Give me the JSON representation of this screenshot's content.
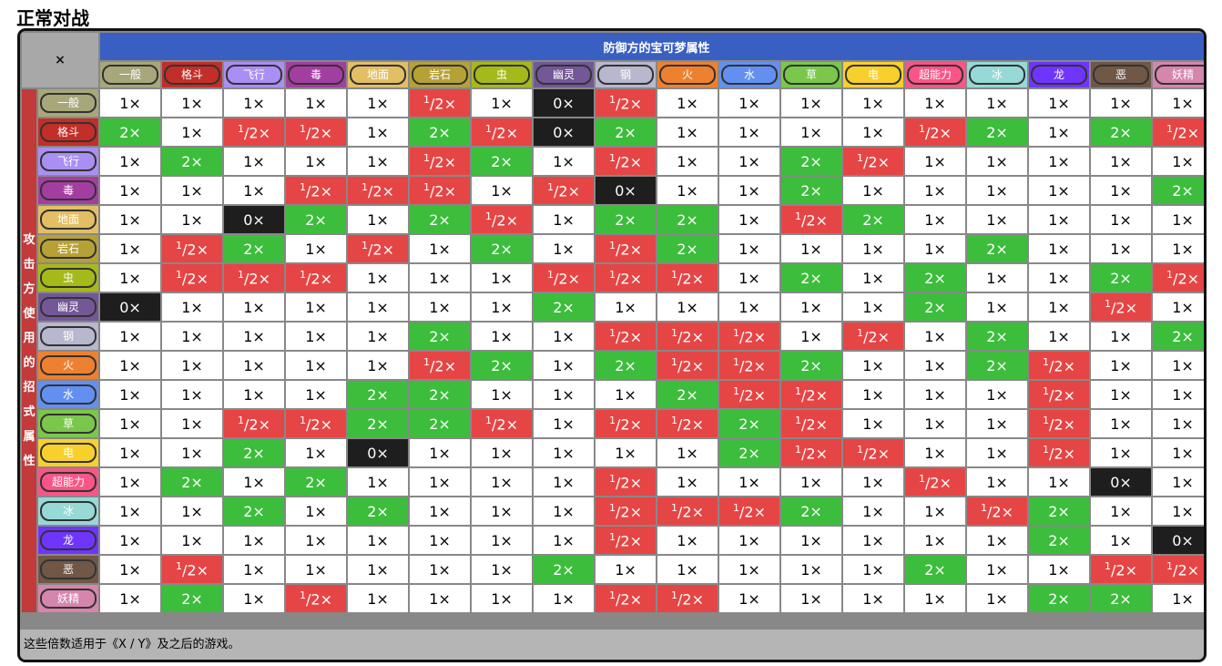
{
  "title": "正常对战",
  "corner": "×",
  "defender_header": "防御方的宝可梦属性",
  "attacker_header": "攻击方使用的招式属性",
  "footer_note": "这些倍数适用于《X / Y》及之后的游戏。",
  "types": [
    {
      "name": "一般",
      "color": "#a8a77a"
    },
    {
      "name": "格斗",
      "color": "#c22e28"
    },
    {
      "name": "飞行",
      "color": "#a98ff3"
    },
    {
      "name": "毒",
      "color": "#a33ea1"
    },
    {
      "name": "地面",
      "color": "#e2bf65"
    },
    {
      "name": "岩石",
      "color": "#b6a136"
    },
    {
      "name": "虫",
      "color": "#a6b91a"
    },
    {
      "name": "幽灵",
      "color": "#735797"
    },
    {
      "name": "钢",
      "color": "#b7b7ce"
    },
    {
      "name": "火",
      "color": "#ee8130"
    },
    {
      "name": "水",
      "color": "#6390f0"
    },
    {
      "name": "草",
      "color": "#7ac74c"
    },
    {
      "name": "电",
      "color": "#f7d02c"
    },
    {
      "name": "超能力",
      "color": "#f95587"
    },
    {
      "name": "冰",
      "color": "#96d9d6"
    },
    {
      "name": "龙",
      "color": "#6f35fc"
    },
    {
      "name": "恶",
      "color": "#705746"
    },
    {
      "name": "妖精",
      "color": "#d685ad"
    }
  ],
  "multiplier_labels": {
    "2": "2×",
    "1": "1×",
    "0": "0×",
    "h_num": "1",
    "h_den": "2",
    "h_suffix": "×"
  },
  "matrix": [
    [
      "1",
      "1",
      "1",
      "1",
      "1",
      "h",
      "1",
      "0",
      "h",
      "1",
      "1",
      "1",
      "1",
      "1",
      "1",
      "1",
      "1",
      "1"
    ],
    [
      "2",
      "1",
      "h",
      "h",
      "1",
      "2",
      "h",
      "0",
      "2",
      "1",
      "1",
      "1",
      "1",
      "h",
      "2",
      "1",
      "2",
      "h"
    ],
    [
      "1",
      "2",
      "1",
      "1",
      "1",
      "h",
      "2",
      "1",
      "h",
      "1",
      "1",
      "2",
      "h",
      "1",
      "1",
      "1",
      "1",
      "1"
    ],
    [
      "1",
      "1",
      "1",
      "h",
      "h",
      "h",
      "1",
      "h",
      "0",
      "1",
      "1",
      "2",
      "1",
      "1",
      "1",
      "1",
      "1",
      "2"
    ],
    [
      "1",
      "1",
      "0",
      "2",
      "1",
      "2",
      "h",
      "1",
      "2",
      "2",
      "1",
      "h",
      "2",
      "1",
      "1",
      "1",
      "1",
      "1"
    ],
    [
      "1",
      "h",
      "2",
      "1",
      "h",
      "1",
      "2",
      "1",
      "h",
      "2",
      "1",
      "1",
      "1",
      "1",
      "2",
      "1",
      "1",
      "1"
    ],
    [
      "1",
      "h",
      "h",
      "h",
      "1",
      "1",
      "1",
      "h",
      "h",
      "h",
      "1",
      "2",
      "1",
      "2",
      "1",
      "1",
      "2",
      "h"
    ],
    [
      "0",
      "1",
      "1",
      "1",
      "1",
      "1",
      "1",
      "2",
      "1",
      "1",
      "1",
      "1",
      "1",
      "2",
      "1",
      "1",
      "h",
      "1"
    ],
    [
      "1",
      "1",
      "1",
      "1",
      "1",
      "2",
      "1",
      "1",
      "h",
      "h",
      "h",
      "1",
      "h",
      "1",
      "2",
      "1",
      "1",
      "2"
    ],
    [
      "1",
      "1",
      "1",
      "1",
      "1",
      "h",
      "2",
      "1",
      "2",
      "h",
      "h",
      "2",
      "1",
      "1",
      "2",
      "h",
      "1",
      "1"
    ],
    [
      "1",
      "1",
      "1",
      "1",
      "2",
      "2",
      "1",
      "1",
      "1",
      "2",
      "h",
      "h",
      "1",
      "1",
      "1",
      "h",
      "1",
      "1"
    ],
    [
      "1",
      "1",
      "h",
      "h",
      "2",
      "2",
      "h",
      "1",
      "h",
      "h",
      "2",
      "h",
      "1",
      "1",
      "1",
      "h",
      "1",
      "1"
    ],
    [
      "1",
      "1",
      "2",
      "1",
      "0",
      "1",
      "1",
      "1",
      "1",
      "1",
      "2",
      "h",
      "h",
      "1",
      "1",
      "h",
      "1",
      "1"
    ],
    [
      "1",
      "2",
      "1",
      "2",
      "1",
      "1",
      "1",
      "1",
      "h",
      "1",
      "1",
      "1",
      "1",
      "h",
      "1",
      "1",
      "0",
      "1"
    ],
    [
      "1",
      "1",
      "2",
      "1",
      "2",
      "1",
      "1",
      "1",
      "h",
      "h",
      "h",
      "2",
      "1",
      "1",
      "h",
      "2",
      "1",
      "1"
    ],
    [
      "1",
      "1",
      "1",
      "1",
      "1",
      "1",
      "1",
      "1",
      "h",
      "1",
      "1",
      "1",
      "1",
      "1",
      "1",
      "2",
      "1",
      "0"
    ],
    [
      "1",
      "h",
      "1",
      "1",
      "1",
      "1",
      "1",
      "2",
      "1",
      "1",
      "1",
      "1",
      "1",
      "2",
      "1",
      "1",
      "h",
      "h"
    ],
    [
      "1",
      "2",
      "1",
      "h",
      "1",
      "1",
      "1",
      "1",
      "h",
      "h",
      "1",
      "1",
      "1",
      "1",
      "1",
      "2",
      "2",
      "1"
    ]
  ]
}
